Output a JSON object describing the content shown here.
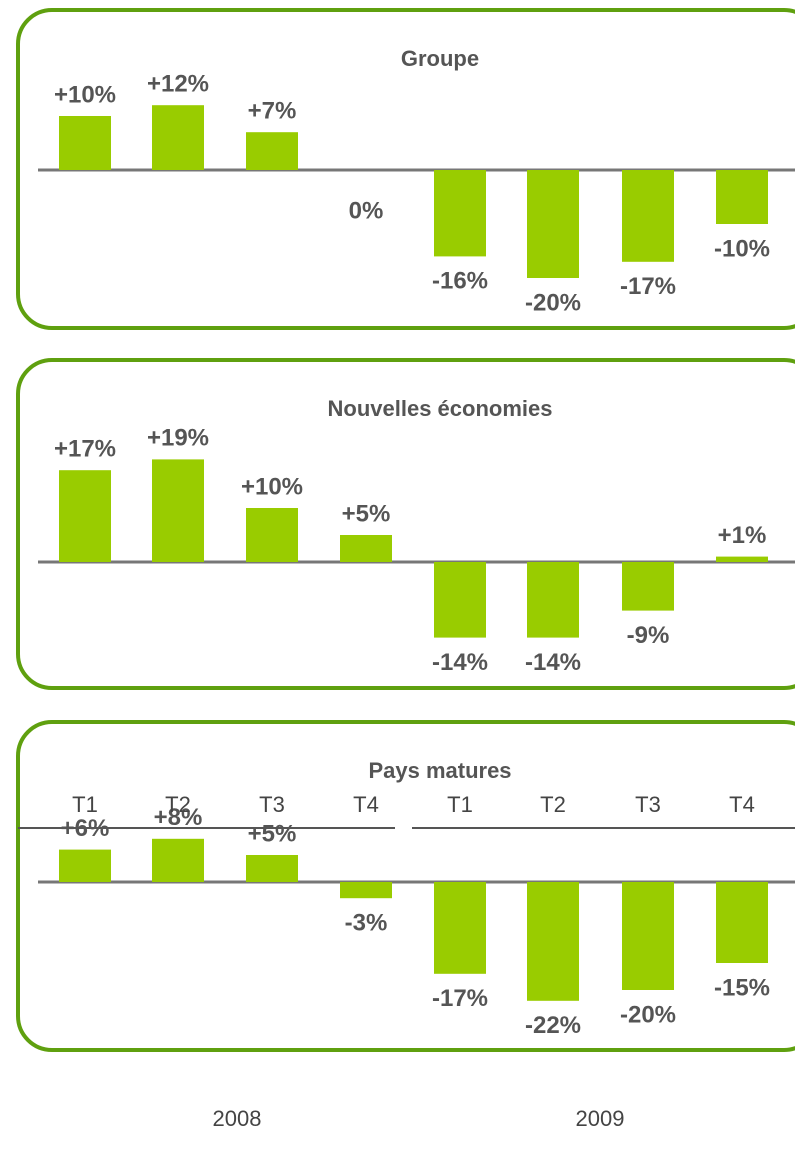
{
  "chart_data": [
    {
      "type": "bar",
      "title": "Groupe",
      "color": "#99cc00",
      "values": [
        10,
        12,
        7,
        0,
        -16,
        -20,
        -17,
        -10
      ],
      "value_labels": [
        "+10%",
        "+12%",
        "+7%",
        "0%",
        "-16%",
        "-20%",
        "-17%",
        "-10%"
      ]
    },
    {
      "type": "bar",
      "title": "Nouvelles économies",
      "color": "#99cc00",
      "values": [
        17,
        19,
        10,
        5,
        -14,
        -14,
        -9,
        1
      ],
      "value_labels": [
        "+17%",
        "+19%",
        "+10%",
        "+5%",
        "-14%",
        "-14%",
        "-9%",
        "+1%"
      ]
    },
    {
      "type": "bar",
      "title": "Pays matures",
      "color": "#99cc00",
      "values": [
        6,
        8,
        5,
        -3,
        -17,
        -22,
        -20,
        -15
      ],
      "value_labels": [
        "+6%",
        "+8%",
        "+5%",
        "-3%",
        "-17%",
        "-22%",
        "-20%",
        "-15%"
      ]
    }
  ],
  "x_axis": {
    "categories": [
      "T1",
      "T2",
      "T3",
      "T4",
      "T1",
      "T2",
      "T3",
      "T4"
    ],
    "years": [
      "2008",
      "2009"
    ]
  }
}
